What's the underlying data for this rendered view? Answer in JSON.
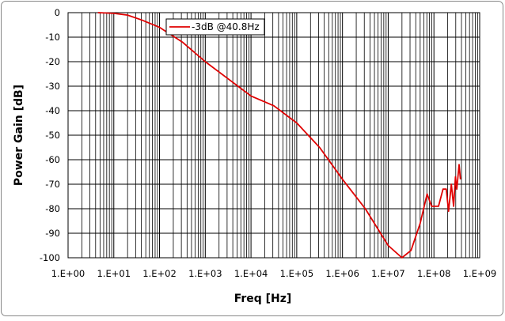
{
  "chart_data": {
    "type": "line",
    "xlabel": "Freq [Hz]",
    "ylabel": "Power Gain [dB]",
    "x": [
      4.5,
      10,
      20,
      40.8,
      100,
      316,
      1000,
      3160,
      10000,
      31600,
      100000,
      316000,
      1000000,
      3160000,
      10000000,
      20000000,
      31600000,
      50000000,
      70800000,
      89100000,
      126000000,
      158000000,
      186000000,
      209000000,
      240000000,
      269000000,
      295000000,
      316000000,
      355000000,
      380000000
    ],
    "series": [
      {
        "name": "-3dB @40.8Hz",
        "color": "#e00000",
        "values": [
          0,
          -0.3,
          -1,
          -3,
          -6,
          -12,
          -20,
          -27,
          -34,
          -38,
          -45,
          -55,
          -68,
          -80,
          -95,
          -100,
          -97,
          -86,
          -74,
          -79,
          -79,
          -72,
          -72,
          -81,
          -70,
          -79,
          -67,
          -72,
          -62,
          -68
        ]
      }
    ],
    "xlim": [
      1,
      1000000000
    ],
    "xticks": [
      {
        "value": 1,
        "label": "1.E+00"
      },
      {
        "value": 10,
        "label": "1.E+01"
      },
      {
        "value": 100,
        "label": "1.E+02"
      },
      {
        "value": 1000,
        "label": "1.E+03"
      },
      {
        "value": 10000,
        "label": "1.E+04"
      },
      {
        "value": 100000,
        "label": "1.E+05"
      },
      {
        "value": 1000000,
        "label": "1.E+06"
      },
      {
        "value": 10000000,
        "label": "1.E+07"
      },
      {
        "value": 100000000,
        "label": "1.E+08"
      },
      {
        "value": 1000000000,
        "label": "1.E+09"
      }
    ],
    "ylim": [
      -100,
      0
    ],
    "yticks": [
      -100,
      -90,
      -80,
      -70,
      -60,
      -50,
      -40,
      -30,
      -20,
      -10,
      0
    ],
    "xscale": "log",
    "grid": true,
    "legend": "upper left"
  }
}
